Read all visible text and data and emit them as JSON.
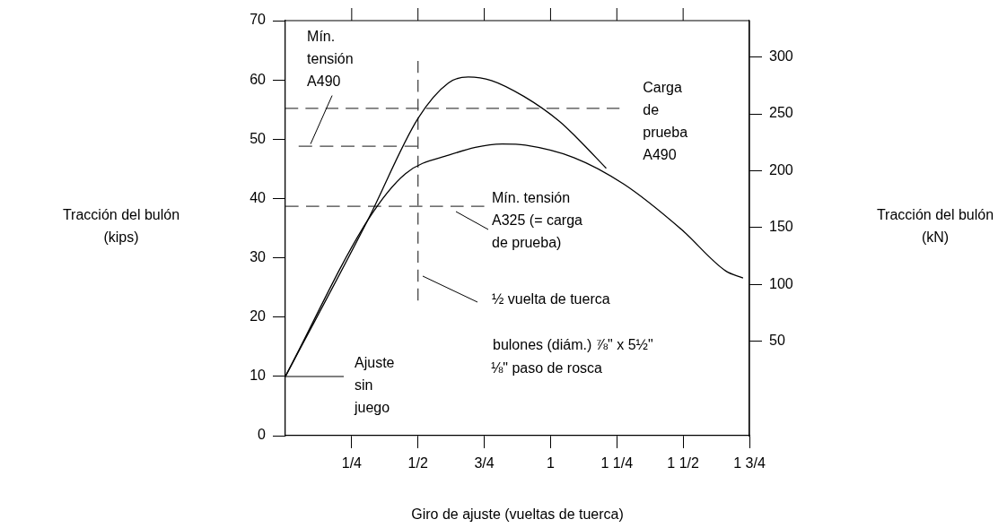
{
  "chart_data": {
    "type": "line",
    "xlabel": "Giro de ajuste (vueltas de tuerca)",
    "ylabel": "Tracción del bulón (kips)",
    "xlim": [
      0,
      1.75
    ],
    "xticks": [
      {
        "value": 0.25,
        "label": "1/4"
      },
      {
        "value": 0.5,
        "label": "1/2"
      },
      {
        "value": 0.75,
        "label": "3/4"
      },
      {
        "value": 1,
        "label": "1"
      },
      {
        "value": 1.25,
        "label": "1 1/4"
      },
      {
        "value": 1.5,
        "label": "1 1/2"
      },
      {
        "value": 1.75,
        "label": "1 3/4"
      }
    ],
    "ylim": [
      0,
      70
    ],
    "yticks": [
      0,
      10,
      20,
      30,
      40,
      50,
      60,
      70
    ],
    "y2lim": [
      -33,
      332
    ],
    "y2ticks": [
      50,
      100,
      150,
      200,
      250,
      300
    ],
    "grid": false,
    "legend": false,
    "marker": "none",
    "series": [
      {
        "color": "#000000",
        "line_style": "solid",
        "x": [
          0,
          0.31,
          0.5,
          0.615,
          0.69,
          0.777,
          0.9,
          1.034,
          1.1,
          1.21
        ],
        "values": [
          10,
          36.3,
          53.5,
          59.5,
          60.5,
          59.9,
          57.2,
          53,
          50.2,
          45.1
        ]
      },
      {
        "color": "#000000",
        "line_style": "solid",
        "x": [
          0,
          0.31,
          0.453,
          0.615,
          0.818,
          0.905,
          1.088,
          1.277,
          1.493,
          1.66,
          1.726
        ],
        "values": [
          10,
          36.3,
          44.2,
          47.3,
          49.2,
          49,
          46.9,
          42.4,
          34.8,
          27.8,
          26.6
        ]
      },
      {
        "color": "#444444",
        "line_style": "dashed",
        "x": [
          0,
          1.26
        ],
        "values": [
          55.2,
          55.2
        ]
      },
      {
        "color": "#444444",
        "line_style": "dashed",
        "x": [
          0.05,
          0.5
        ],
        "values": [
          48.8,
          48.8
        ]
      },
      {
        "color": "#444444",
        "line_style": "dashed",
        "x": [
          0,
          0.75
        ],
        "values": [
          38.7,
          38.7
        ]
      },
      {
        "color": "#444444",
        "line_style": "dashed",
        "x": [
          0.5,
          0.5
        ],
        "values": [
          22.8,
          63.2
        ]
      }
    ],
    "annotations": [
      {
        "text": "Mín. tensión A490",
        "x": 0.095,
        "y": 49.2
      },
      {
        "text": "Carga de prueba A490",
        "x": 1.26,
        "y": 55.2
      },
      "Mín. tensión A325 (= carga de prueba)",
      "½ vuelta de tuerca",
      "bulones (diám.) ⅞\" x 5½\"",
      "⅛\" paso de rosca",
      "Ajuste sin juego",
      "Tracción del bulón (kN)"
    ]
  }
}
